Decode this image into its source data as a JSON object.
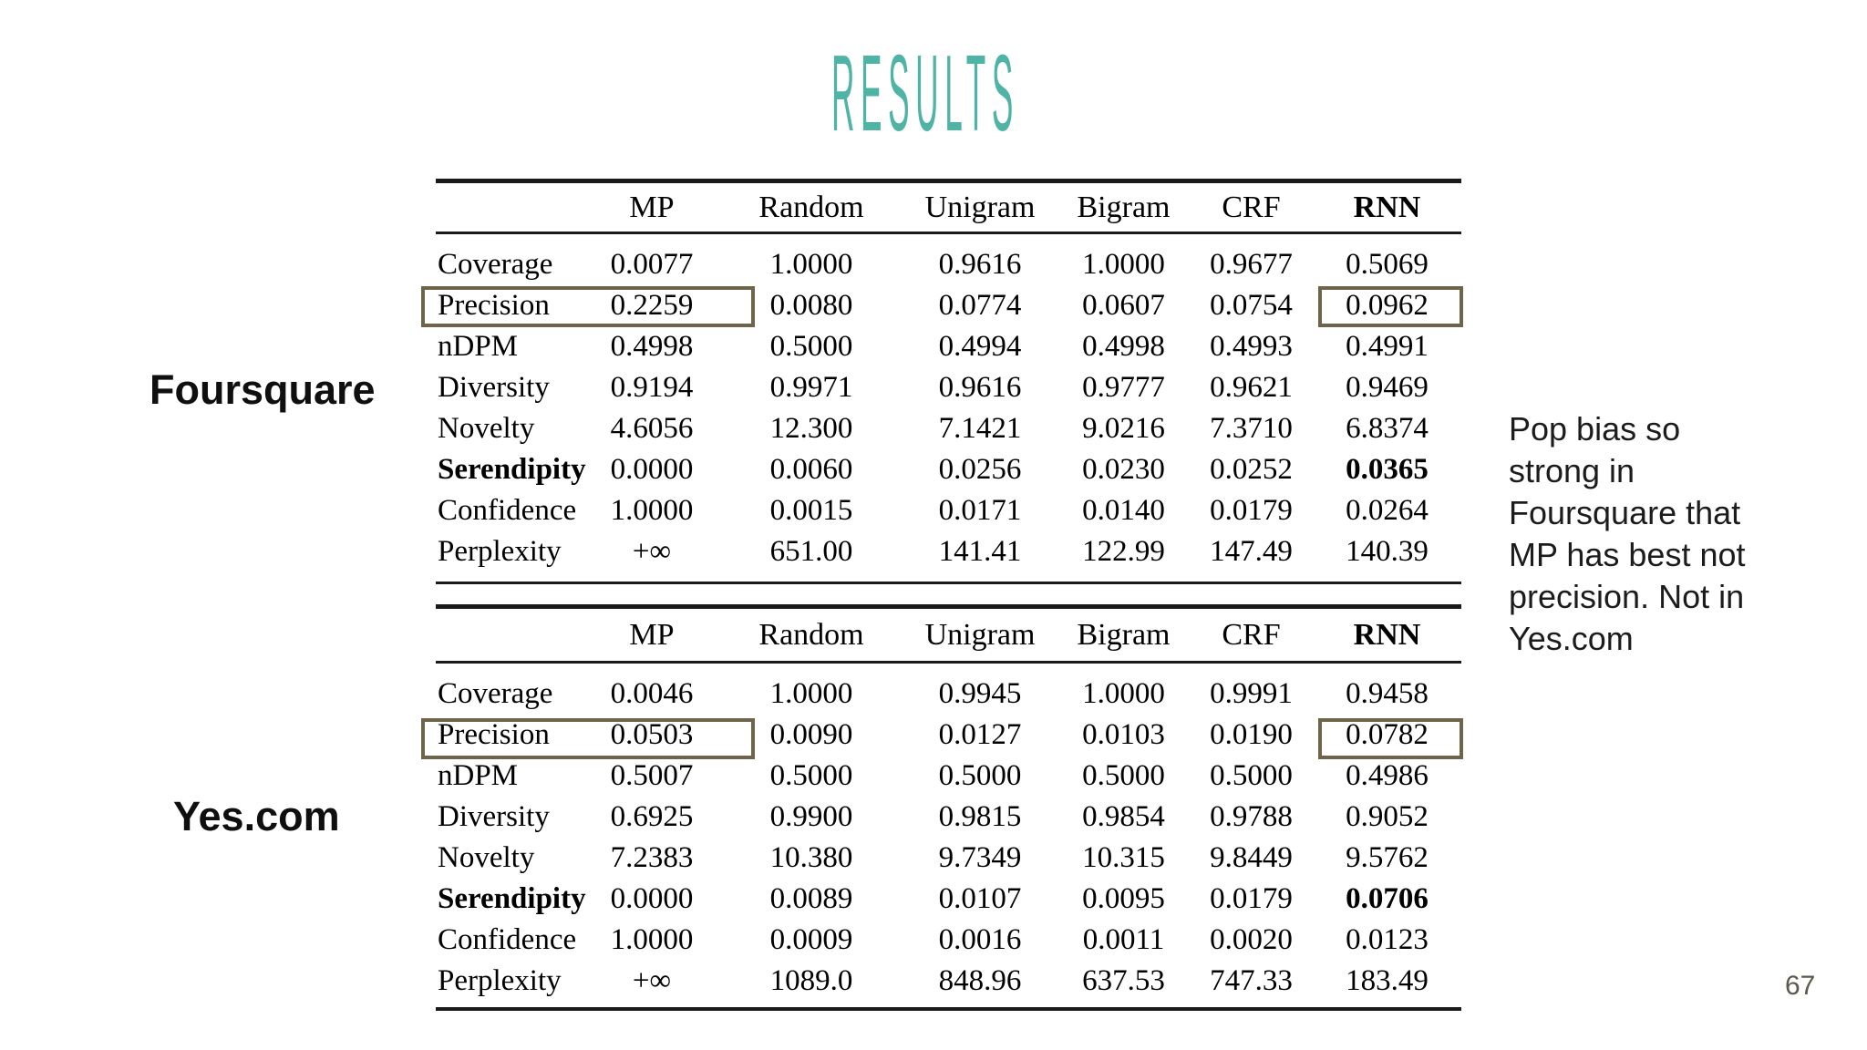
{
  "slide": {
    "title": "RESULTS",
    "page_number": "67",
    "accent_color": "#4fb3a6",
    "highlight_box_color": "#6e6449"
  },
  "annotation": {
    "text": "Pop bias so strong in Foursquare that MP has best not precision. Not in Yes.com",
    "lines": [
      "Pop bias so",
      "strong in",
      "Foursquare that",
      "MP has best not",
      "precision. Not in",
      "Yes.com"
    ]
  },
  "tables": [
    {
      "dataset_label": "Foursquare",
      "columns": [
        "MP",
        "Random",
        "Unigram",
        "Bigram",
        "CRF",
        "RNN"
      ],
      "bold_columns": [
        "RNN"
      ],
      "highlighted_cells": [
        "Precision/MP",
        "Precision/RNN"
      ],
      "rows": [
        {
          "metric": "Coverage",
          "values": [
            "0.0077",
            "1.0000",
            "0.9616",
            "1.0000",
            "0.9677",
            "0.5069"
          ]
        },
        {
          "metric": "Precision",
          "values": [
            "0.2259",
            "0.0080",
            "0.0774",
            "0.0607",
            "0.0754",
            "0.0962"
          ],
          "boxed": true
        },
        {
          "metric": "nDPM",
          "values": [
            "0.4998",
            "0.5000",
            "0.4994",
            "0.4998",
            "0.4993",
            "0.4991"
          ]
        },
        {
          "metric": "Diversity",
          "values": [
            "0.9194",
            "0.9971",
            "0.9616",
            "0.9777",
            "0.9621",
            "0.9469"
          ]
        },
        {
          "metric": "Novelty",
          "values": [
            "4.6056",
            "12.300",
            "7.1421",
            "9.0216",
            "7.3710",
            "6.8374"
          ]
        },
        {
          "metric": "Serendipity",
          "values": [
            "0.0000",
            "0.0060",
            "0.0256",
            "0.0230",
            "0.0252",
            "0.0365"
          ],
          "bold_metric": true,
          "bold_value_indices": [
            5
          ]
        },
        {
          "metric": "Confidence",
          "values": [
            "1.0000",
            "0.0015",
            "0.0171",
            "0.0140",
            "0.0179",
            "0.0264"
          ]
        },
        {
          "metric": "Perplexity",
          "values": [
            "+∞",
            "651.00",
            "141.41",
            "122.99",
            "147.49",
            "140.39"
          ]
        }
      ]
    },
    {
      "dataset_label": "Yes.com",
      "columns": [
        "MP",
        "Random",
        "Unigram",
        "Bigram",
        "CRF",
        "RNN"
      ],
      "bold_columns": [
        "RNN"
      ],
      "highlighted_cells": [
        "Precision/MP",
        "Precision/RNN"
      ],
      "rows": [
        {
          "metric": "Coverage",
          "values": [
            "0.0046",
            "1.0000",
            "0.9945",
            "1.0000",
            "0.9991",
            "0.9458"
          ]
        },
        {
          "metric": "Precision",
          "values": [
            "0.0503",
            "0.0090",
            "0.0127",
            "0.0103",
            "0.0190",
            "0.0782"
          ],
          "boxed": true
        },
        {
          "metric": "nDPM",
          "values": [
            "0.5007",
            "0.5000",
            "0.5000",
            "0.5000",
            "0.5000",
            "0.4986"
          ]
        },
        {
          "metric": "Diversity",
          "values": [
            "0.6925",
            "0.9900",
            "0.9815",
            "0.9854",
            "0.9788",
            "0.9052"
          ]
        },
        {
          "metric": "Novelty",
          "values": [
            "7.2383",
            "10.380",
            "9.7349",
            "10.315",
            "9.8449",
            "9.5762"
          ]
        },
        {
          "metric": "Serendipity",
          "values": [
            "0.0000",
            "0.0089",
            "0.0107",
            "0.0095",
            "0.0179",
            "0.0706"
          ],
          "bold_metric": true,
          "bold_value_indices": [
            5
          ]
        },
        {
          "metric": "Confidence",
          "values": [
            "1.0000",
            "0.0009",
            "0.0016",
            "0.0011",
            "0.0020",
            "0.0123"
          ]
        },
        {
          "metric": "Perplexity",
          "values": [
            "+∞",
            "1089.0",
            "848.96",
            "637.53",
            "747.33",
            "183.49"
          ]
        }
      ]
    }
  ]
}
